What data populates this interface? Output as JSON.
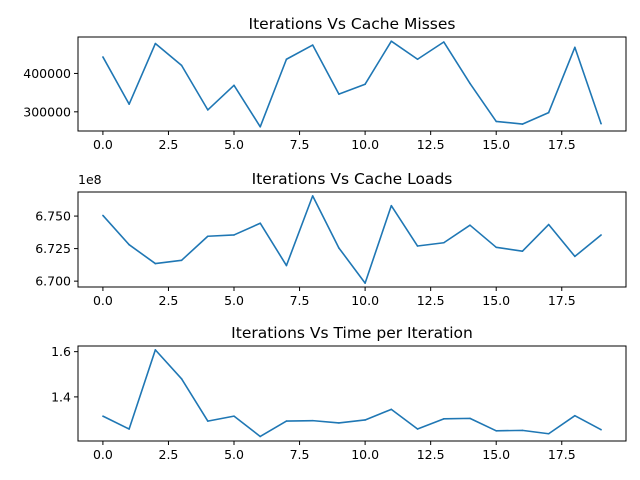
{
  "chart_data": [
    {
      "type": "line",
      "title": "Iterations Vs Cache Misses",
      "xlabel": "",
      "ylabel": "",
      "offset_text": "",
      "xlim": [
        -0.95,
        19.95
      ],
      "ylim": [
        250000,
        495000
      ],
      "xticks": [
        0,
        2.5,
        5,
        7.5,
        10,
        12.5,
        15,
        17.5
      ],
      "xtick_labels": [
        "0.0",
        "2.5",
        "5.0",
        "7.5",
        "10.0",
        "12.5",
        "15.0",
        "17.5"
      ],
      "yticks": [
        300000,
        400000
      ],
      "ytick_labels": [
        "300000",
        "400000"
      ],
      "grid": false,
      "color": "#1f77b4",
      "series": [
        {
          "x": [
            0,
            1,
            2,
            3,
            4,
            5,
            6,
            7,
            8,
            9,
            10,
            11,
            12,
            13,
            14,
            15,
            16,
            17,
            18,
            19
          ],
          "values": [
            443000,
            320000,
            478000,
            421000,
            305000,
            369000,
            261000,
            437000,
            474000,
            346000,
            372000,
            484000,
            437000,
            482000,
            374000,
            275000,
            268000,
            298000,
            468000,
            269000
          ]
        }
      ]
    },
    {
      "type": "line",
      "title": "Iterations Vs Cache Loads",
      "xlabel": "",
      "ylabel": "",
      "offset_text": "1e8",
      "xlim": [
        -0.95,
        19.95
      ],
      "ylim": [
        6.6955,
        6.7685
      ],
      "xticks": [
        0,
        2.5,
        5,
        7.5,
        10,
        12.5,
        15,
        17.5
      ],
      "xtick_labels": [
        "0.0",
        "2.5",
        "5.0",
        "7.5",
        "10.0",
        "12.5",
        "15.0",
        "17.5"
      ],
      "yticks": [
        6.7,
        6.725,
        6.75
      ],
      "ytick_labels": [
        "6.700",
        "6.725",
        "6.750"
      ],
      "grid": false,
      "color": "#1f77b4",
      "series": [
        {
          "x": [
            0,
            1,
            2,
            3,
            4,
            5,
            6,
            7,
            8,
            9,
            10,
            11,
            12,
            13,
            14,
            15,
            16,
            17,
            18,
            19
          ],
          "values": [
            6.7505,
            6.728,
            6.7135,
            6.716,
            6.7345,
            6.7355,
            6.7445,
            6.712,
            6.7655,
            6.7255,
            6.6985,
            6.758,
            6.727,
            6.7295,
            6.743,
            6.726,
            6.723,
            6.7435,
            6.719,
            6.7355
          ]
        }
      ]
    },
    {
      "type": "line",
      "title": "Iterations Vs Time per Iteration",
      "xlabel": "",
      "ylabel": "",
      "offset_text": "",
      "xlim": [
        -0.95,
        19.95
      ],
      "ylim": [
        1.205,
        1.625
      ],
      "xticks": [
        0,
        2.5,
        5,
        7.5,
        10,
        12.5,
        15,
        17.5
      ],
      "xtick_labels": [
        "0.0",
        "2.5",
        "5.0",
        "7.5",
        "10.0",
        "12.5",
        "15.0",
        "17.5"
      ],
      "yticks": [
        1.4,
        1.6
      ],
      "ytick_labels": [
        "1.4",
        "1.6"
      ],
      "grid": false,
      "color": "#1f77b4",
      "series": [
        {
          "x": [
            0,
            1,
            2,
            3,
            4,
            5,
            6,
            7,
            8,
            9,
            10,
            11,
            12,
            13,
            14,
            15,
            16,
            17,
            18,
            19
          ],
          "values": [
            1.315,
            1.258,
            1.608,
            1.48,
            1.293,
            1.315,
            1.225,
            1.293,
            1.295,
            1.285,
            1.298,
            1.345,
            1.258,
            1.303,
            1.305,
            1.25,
            1.252,
            1.237,
            1.317,
            1.255
          ]
        }
      ]
    }
  ]
}
